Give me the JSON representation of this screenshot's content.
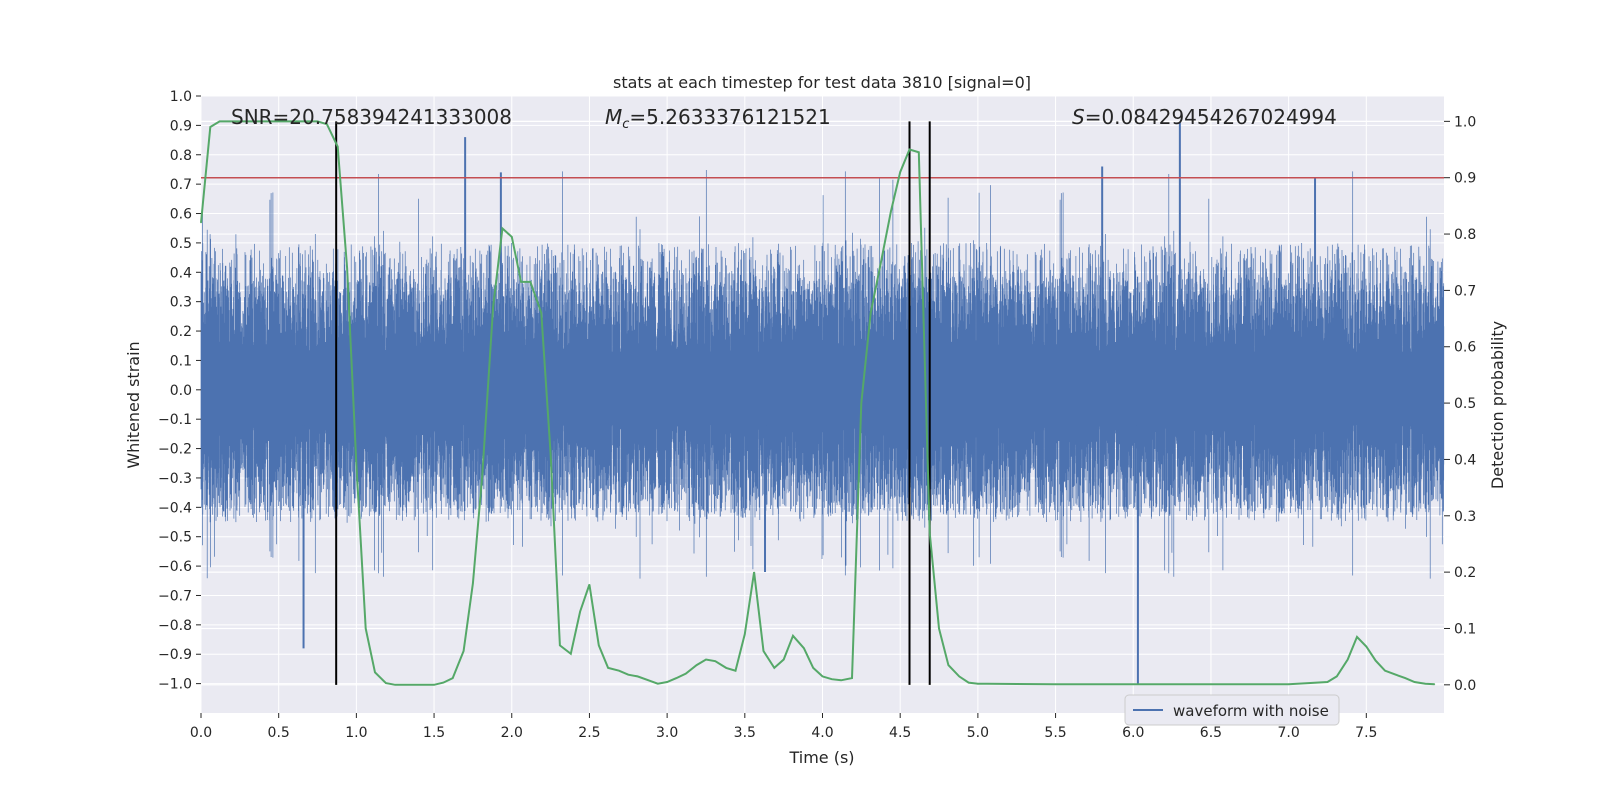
{
  "chart_data": {
    "type": "line",
    "title": "stats at each timestep for test data 3810 [signal=0]",
    "xlabel": "Time (s)",
    "ylabel": "Whitened strain",
    "y2label": "Detection probability",
    "xlim": [
      0,
      8
    ],
    "ylim": [
      -1.1,
      1.0
    ],
    "y2lim": [
      -0.05,
      1.045
    ],
    "x_ticks": [
      0.0,
      0.5,
      1.0,
      1.5,
      2.0,
      2.5,
      3.0,
      3.5,
      4.0,
      4.5,
      5.0,
      5.5,
      6.0,
      6.5,
      7.0,
      7.5
    ],
    "x_tick_labels": [
      "0.0",
      "0.5",
      "1.0",
      "1.5",
      "2.0",
      "2.5",
      "3.0",
      "3.5",
      "4.0",
      "4.5",
      "5.0",
      "5.5",
      "6.0",
      "6.5",
      "7.0",
      "7.5"
    ],
    "y_ticks": [
      1.0,
      0.9,
      0.8,
      0.7,
      0.6,
      0.5,
      0.4,
      0.3,
      0.2,
      0.1,
      0.0,
      -0.1,
      -0.2,
      -0.3,
      -0.4,
      -0.5,
      -0.6,
      -0.7,
      -0.8,
      -0.9,
      -1.0
    ],
    "y_tick_labels": [
      "1.0",
      "0.9",
      "0.8",
      "0.7",
      "0.6",
      "0.5",
      "0.4",
      "0.3",
      "0.2",
      "0.1",
      "0.0",
      "−0.1",
      "−0.2",
      "−0.3",
      "−0.4",
      "−0.5",
      "−0.6",
      "−0.7",
      "−0.8",
      "−0.9",
      "−1.0"
    ],
    "y2_ticks": [
      1.0,
      0.9,
      0.8,
      0.7,
      0.6,
      0.5,
      0.4,
      0.3,
      0.2,
      0.1,
      0.0
    ],
    "y2_tick_labels": [
      "1.0",
      "0.9",
      "0.8",
      "0.7",
      "0.6",
      "0.5",
      "0.4",
      "0.3",
      "0.2",
      "0.1",
      "0.0"
    ],
    "grid": true,
    "legend": {
      "entries": [
        "waveform with noise"
      ],
      "placement": "lower-right"
    },
    "annotations": {
      "snr": "SNR=20.758394241333008",
      "mc_symbol": "M",
      "mc_subscript": "c",
      "mc_value": "=5.2633376121521",
      "s_symbol": "S",
      "s_value": "=0.08429454267024994"
    },
    "threshold_y2": 0.9,
    "event_markers_x": [
      0.87,
      4.56,
      4.69
    ],
    "waveform": {
      "name": "waveform with noise",
      "sample_count": 8192,
      "envelope": {
        "positive_typical": 0.5,
        "negative_typical": -0.45,
        "max": 0.9,
        "min": -1.0
      },
      "peaks": [
        {
          "x": 0.66,
          "y": -0.88
        },
        {
          "x": 1.7,
          "y": 0.86
        },
        {
          "x": 1.93,
          "y": 0.74
        },
        {
          "x": 3.63,
          "y": -0.62
        },
        {
          "x": 5.8,
          "y": 0.76
        },
        {
          "x": 6.03,
          "y": -1.0
        },
        {
          "x": 6.3,
          "y": 0.91
        },
        {
          "x": 7.17,
          "y": 0.72
        }
      ]
    },
    "series": [
      {
        "axis": "y2",
        "color": "#55a868",
        "x": [
          0.0,
          0.06,
          0.12,
          0.25,
          0.5,
          0.75,
          0.81,
          0.88,
          0.94,
          1.0,
          1.06,
          1.12,
          1.19,
          1.25,
          1.5,
          1.56,
          1.62,
          1.69,
          1.75,
          1.81,
          1.88,
          1.94,
          2.0,
          2.06,
          2.12,
          2.19,
          2.25,
          2.31,
          2.38,
          2.44,
          2.5,
          2.56,
          2.62,
          2.69,
          2.75,
          2.81,
          2.88,
          2.94,
          3.0,
          3.06,
          3.12,
          3.19,
          3.25,
          3.31,
          3.38,
          3.44,
          3.5,
          3.56,
          3.62,
          3.69,
          3.75,
          3.81,
          3.88,
          3.94,
          4.0,
          4.06,
          4.12,
          4.19,
          4.25,
          4.31,
          4.38,
          4.44,
          4.5,
          4.56,
          4.62,
          4.69,
          4.75,
          4.81,
          4.88,
          4.94,
          5.0,
          5.06,
          5.5,
          6.0,
          7.0,
          7.25,
          7.31,
          7.38,
          7.44,
          7.5,
          7.56,
          7.62,
          7.69,
          7.75,
          7.81,
          7.88,
          7.94
        ],
        "values": [
          0.82,
          0.99,
          1.0,
          1.0,
          1.0,
          1.0,
          0.995,
          0.955,
          0.74,
          0.39,
          0.1,
          0.022,
          0.003,
          0.0,
          0.0,
          0.004,
          0.012,
          0.06,
          0.18,
          0.37,
          0.67,
          0.81,
          0.795,
          0.715,
          0.715,
          0.66,
          0.41,
          0.07,
          0.055,
          0.13,
          0.178,
          0.07,
          0.03,
          0.025,
          0.018,
          0.015,
          0.008,
          0.002,
          0.005,
          0.012,
          0.02,
          0.035,
          0.045,
          0.042,
          0.03,
          0.025,
          0.09,
          0.2,
          0.06,
          0.03,
          0.045,
          0.087,
          0.065,
          0.03,
          0.015,
          0.01,
          0.008,
          0.012,
          0.5,
          0.66,
          0.755,
          0.84,
          0.91,
          0.95,
          0.945,
          0.27,
          0.1,
          0.035,
          0.015,
          0.004,
          0.002,
          0.002,
          0.001,
          0.001,
          0.001,
          0.005,
          0.015,
          0.045,
          0.085,
          0.068,
          0.043,
          0.025,
          0.018,
          0.012,
          0.005,
          0.002,
          0.001
        ]
      }
    ]
  },
  "colors": {
    "axes_background": "#eaeaf2",
    "grid": "#ffffff",
    "waveform": "#4c72b0",
    "probability": "#55a868",
    "threshold": "#c44e52",
    "markers": "#000000",
    "text": "#262626"
  }
}
